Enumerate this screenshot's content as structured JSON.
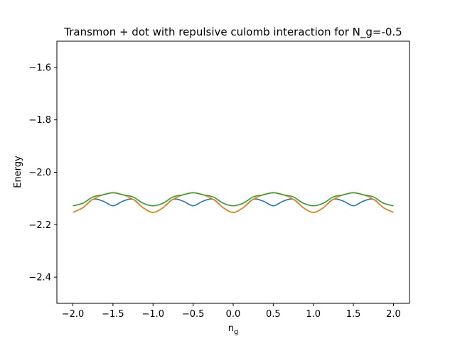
{
  "chart_data": {
    "type": "line",
    "title": "Transmon + dot with repulsive culomb interaction for N_g=-0.5",
    "xlabel_main": "n",
    "xlabel_sub": "g",
    "ylabel": "Energy",
    "xlim": [
      -2.2,
      2.2
    ],
    "ylim": [
      -2.5,
      -1.5
    ],
    "grid": false,
    "legend": "none",
    "x_ticks": [
      -2.0,
      -1.5,
      -1.0,
      -0.5,
      0.0,
      0.5,
      1.0,
      1.5,
      2.0
    ],
    "x_tick_labels": [
      "−2.0",
      "−1.5",
      "−1.0",
      "−0.5",
      "0.0",
      "0.5",
      "1.0",
      "1.5",
      "2.0"
    ],
    "y_ticks": [
      -2.4,
      -2.2,
      -2.0,
      -1.8,
      -1.6
    ],
    "y_tick_labels": [
      "−2.4",
      "−2.2",
      "−2.0",
      "−1.8",
      "−1.6"
    ],
    "series": [
      {
        "color": "#1f77b4",
        "x": [
          -2.0,
          -1.875,
          -1.75,
          -1.625,
          -1.5,
          -1.375,
          -1.25,
          -1.125,
          -1.0,
          -0.875,
          -0.75,
          -0.625,
          -0.5,
          -0.375,
          -0.25,
          -0.125,
          0.0,
          0.125,
          0.25,
          0.375,
          0.5,
          0.625,
          0.75,
          0.875,
          1.0,
          1.125,
          1.25,
          1.375,
          1.5,
          1.625,
          1.75,
          1.875,
          2.0
        ],
        "values": [
          -2.153,
          -2.135,
          -2.103,
          -2.086,
          -2.078,
          -2.086,
          -2.103,
          -2.135,
          -2.153,
          -2.135,
          -2.103,
          -2.086,
          -2.078,
          -2.086,
          -2.103,
          -2.135,
          -2.153,
          -2.135,
          -2.103,
          -2.086,
          -2.078,
          -2.086,
          -2.103,
          -2.135,
          -2.153,
          -2.135,
          -2.103,
          -2.086,
          -2.078,
          -2.086,
          -2.103,
          -2.135,
          -2.153
        ]
      },
      {
        "color": "#ff7f0e",
        "x": [
          -2.0,
          -1.875,
          -1.75,
          -1.625,
          -1.5,
          -1.375,
          -1.25,
          -1.125,
          -1.0,
          -0.875,
          -0.75,
          -0.625,
          -0.5,
          -0.375,
          -0.25,
          -0.125,
          0.0,
          0.125,
          0.25,
          0.375,
          0.5,
          0.625,
          0.75,
          0.875,
          1.0,
          1.125,
          1.25,
          1.375,
          1.5,
          1.625,
          1.75,
          1.875,
          2.0
        ],
        "values": [
          -2.153,
          -2.135,
          -2.103,
          -2.086,
          -2.078,
          -2.086,
          -2.103,
          -2.135,
          -2.153,
          -2.135,
          -2.103,
          -2.086,
          -2.078,
          -2.086,
          -2.103,
          -2.135,
          -2.153,
          -2.135,
          -2.103,
          -2.086,
          -2.078,
          -2.086,
          -2.103,
          -2.135,
          -2.153,
          -2.135,
          -2.103,
          -2.086,
          -2.078,
          -2.086,
          -2.103,
          -2.135,
          -2.153
        ]
      },
      {
        "color": "#2ca02c",
        "x": [
          -2.0,
          -1.875,
          -1.75,
          -1.625,
          -1.5,
          -1.375,
          -1.25,
          -1.125,
          -1.0,
          -0.875,
          -0.75,
          -0.625,
          -0.5,
          -0.375,
          -0.25,
          -0.125,
          0.0,
          0.125,
          0.25,
          0.375,
          0.5,
          0.625,
          0.75,
          0.875,
          1.0,
          1.125,
          1.25,
          1.375,
          1.5,
          1.625,
          1.75,
          1.875,
          2.0
        ],
        "values": [
          -2.128,
          -2.118,
          -2.094,
          -2.086,
          -2.078,
          -2.086,
          -2.094,
          -2.118,
          -2.128,
          -2.118,
          -2.094,
          -2.086,
          -2.078,
          -2.086,
          -2.094,
          -2.118,
          -2.128,
          -2.118,
          -2.094,
          -2.086,
          -2.078,
          -2.086,
          -2.094,
          -2.118,
          -2.128,
          -2.118,
          -2.094,
          -2.086,
          -2.078,
          -2.086,
          -2.094,
          -2.118,
          -2.128
        ]
      }
    ],
    "blue_dips": {
      "note_free": true,
      "x": [
        -2.0,
        -1.875,
        -1.75,
        -1.625,
        -1.5,
        -1.375,
        -1.25,
        -1.125,
        -1.0,
        -0.875,
        -0.75,
        -0.625,
        -0.5,
        -0.375,
        -0.25,
        -0.125,
        0.0,
        0.125,
        0.25,
        0.375,
        0.5,
        0.625,
        0.75,
        0.875,
        1.0,
        1.125,
        1.25,
        1.375,
        1.5,
        1.625,
        1.75,
        1.875,
        2.0
      ],
      "values": [
        -2.153,
        -2.135,
        -2.103,
        -2.11,
        -2.128,
        -2.11,
        -2.103,
        -2.135,
        -2.153,
        -2.135,
        -2.103,
        -2.11,
        -2.128,
        -2.11,
        -2.103,
        -2.135,
        -2.153,
        -2.135,
        -2.103,
        -2.11,
        -2.128,
        -2.11,
        -2.103,
        -2.135,
        -2.153,
        -2.135,
        -2.103,
        -2.11,
        -2.128,
        -2.11,
        -2.103,
        -2.135,
        -2.153
      ]
    }
  }
}
